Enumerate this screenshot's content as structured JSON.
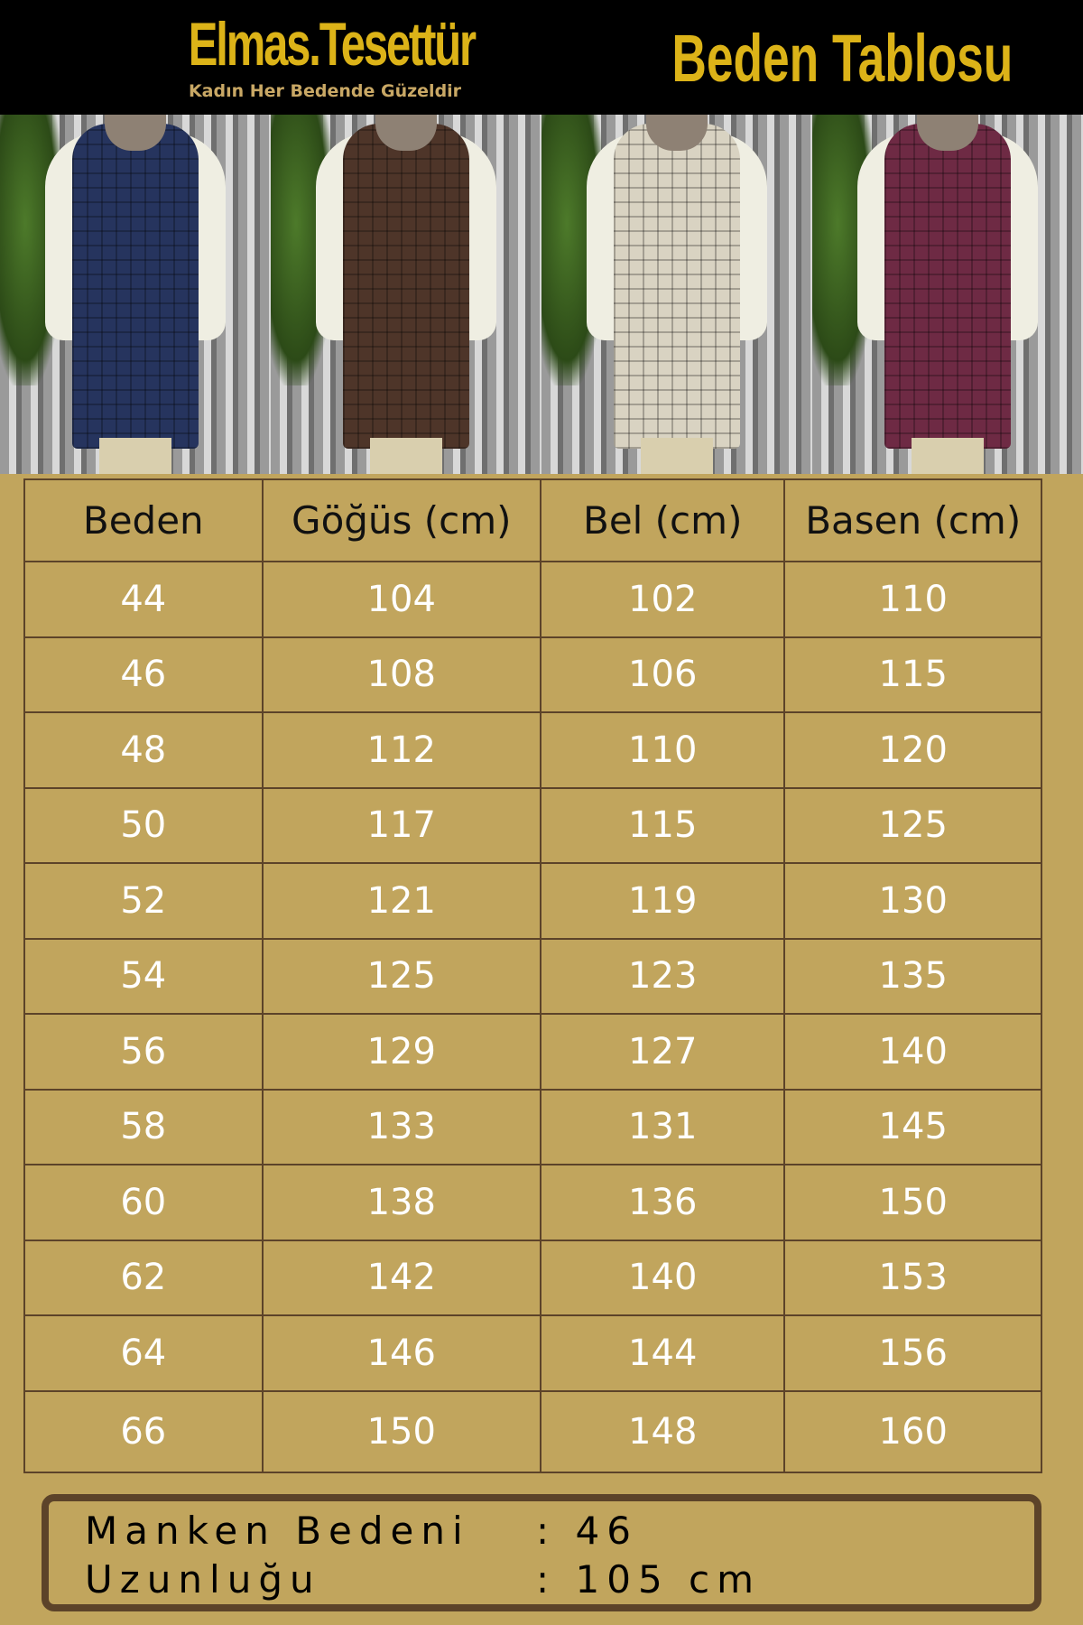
{
  "header": {
    "brand": "Elmas.Tesettür",
    "tagline": "Kadın Her Bedende Güzeldir",
    "title": "Beden Tablosu"
  },
  "photos": [
    {
      "garment_color": "#26345e"
    },
    {
      "garment_color": "#4e3529"
    },
    {
      "garment_color": "#d9d3c2"
    },
    {
      "garment_color": "#6e2a44"
    }
  ],
  "table": {
    "headers": [
      "Beden",
      "Göğüs (cm)",
      "Bel (cm)",
      "Basen (cm)"
    ],
    "rows": [
      [
        "44",
        "104",
        "102",
        "110"
      ],
      [
        "46",
        "108",
        "106",
        "115"
      ],
      [
        "48",
        "112",
        "110",
        "120"
      ],
      [
        "50",
        "117",
        "115",
        "125"
      ],
      [
        "52",
        "121",
        "119",
        "130"
      ],
      [
        "54",
        "125",
        "123",
        "135"
      ],
      [
        "56",
        "129",
        "127",
        "140"
      ],
      [
        "58",
        "133",
        "131",
        "145"
      ],
      [
        "60",
        "138",
        "136",
        "150"
      ],
      [
        "62",
        "142",
        "140",
        "153"
      ],
      [
        "64",
        "146",
        "144",
        "156"
      ],
      [
        "66",
        "150",
        "148",
        "160"
      ]
    ]
  },
  "model": {
    "size_label": "Manken Bedeni",
    "size_value": ": 46",
    "length_label": "Uzunluğu",
    "length_value": ": 105 cm"
  },
  "colors": {
    "background": "#c1a55d",
    "border": "#5c4329",
    "accent": "#dcb318"
  }
}
